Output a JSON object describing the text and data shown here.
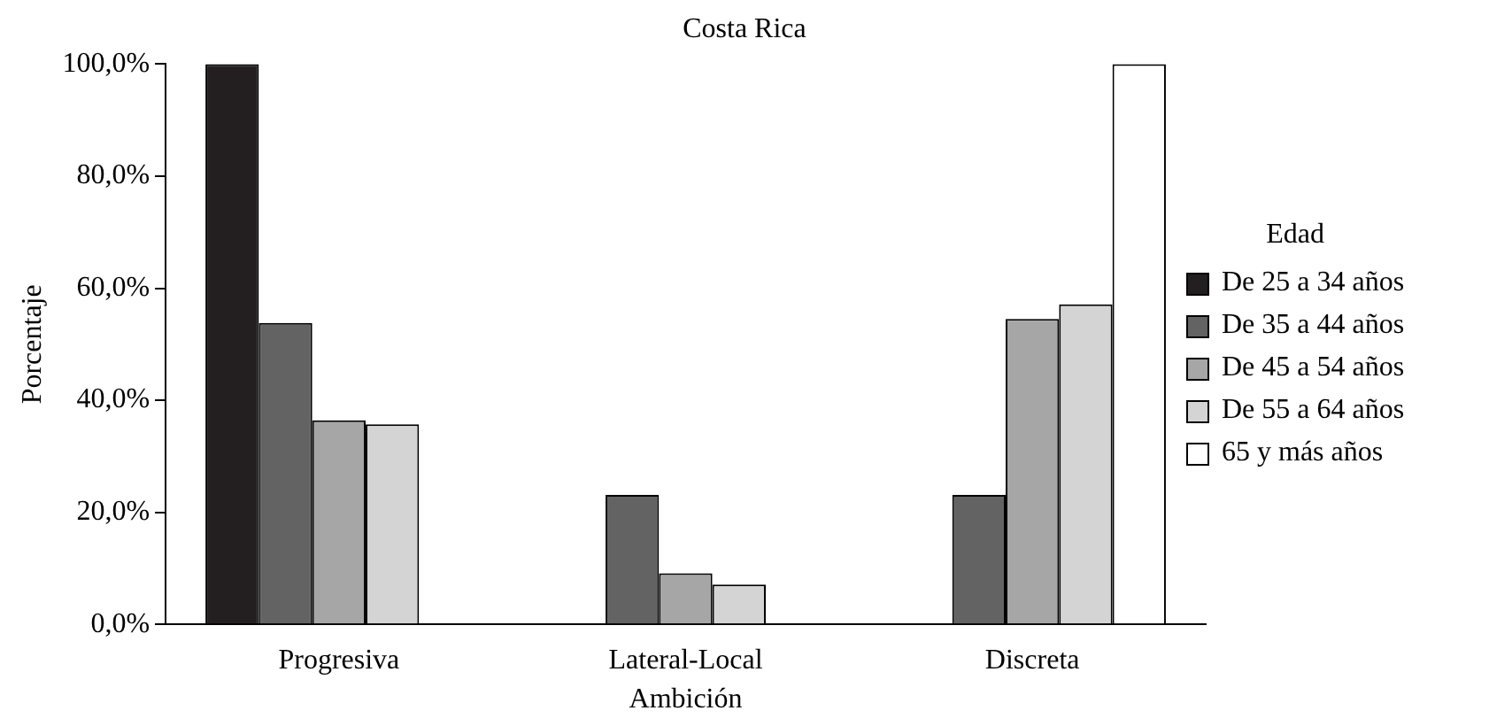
{
  "chart_data": {
    "type": "bar",
    "title": "Costa Rica",
    "xlabel": "Ambición",
    "ylabel": "Porcentaje",
    "legend_title": "Edad",
    "categories": [
      "Progresiva",
      "Lateral-Local",
      "Discreta"
    ],
    "series": [
      {
        "name": "De 25 a 34 años",
        "color": "#231f20",
        "values": [
          100,
          0,
          0
        ]
      },
      {
        "name": "De 35 a 44 años",
        "color": "#636363",
        "values": [
          53.8,
          23.1,
          23.1
        ]
      },
      {
        "name": "De 45 a 54 años",
        "color": "#a6a6a6",
        "values": [
          36.4,
          9.1,
          54.5
        ]
      },
      {
        "name": "De 55 a 64 años",
        "color": "#d4d4d4",
        "values": [
          35.7,
          7.1,
          57.1
        ]
      },
      {
        "name": "65 y más años",
        "color": "#ffffff",
        "values": [
          0,
          0,
          100
        ]
      }
    ],
    "ylim": [
      0,
      100
    ],
    "yticks": [
      {
        "value": 0,
        "label": "0,0%"
      },
      {
        "value": 20,
        "label": "20,0%"
      },
      {
        "value": 40,
        "label": "40,0%"
      },
      {
        "value": 60,
        "label": "60,0%"
      },
      {
        "value": 80,
        "label": "80,0%"
      },
      {
        "value": 100,
        "label": "100,0%"
      }
    ],
    "grid": false,
    "legend": "right"
  }
}
